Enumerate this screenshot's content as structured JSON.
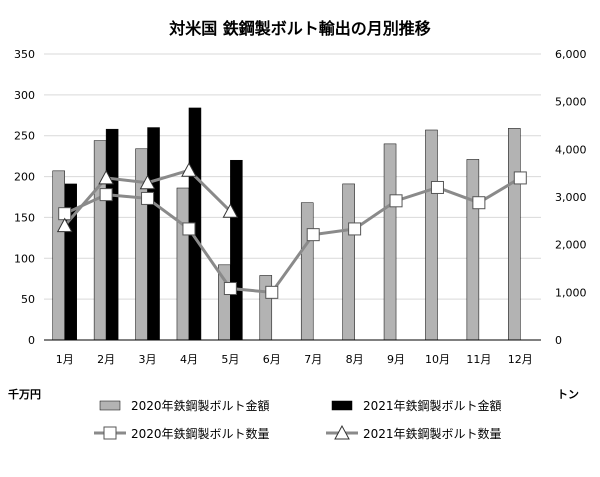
{
  "chart_data": {
    "type": "bar",
    "title": "対米国 鉄鋼製ボルト輸出の月別推移",
    "y_left_unit": "千万円",
    "y_right_unit": "トン",
    "y_left_ticks": [
      "0",
      "50",
      "100",
      "150",
      "200",
      "250",
      "300",
      "350"
    ],
    "y_right_ticks": [
      "0",
      "1,000",
      "2,000",
      "3,000",
      "4,000",
      "5,000",
      "6,000"
    ],
    "ylim_left": [
      0,
      350
    ],
    "ylim_right": [
      0,
      6000
    ],
    "categories": [
      "1月",
      "2月",
      "3月",
      "4月",
      "5月",
      "6月",
      "7月",
      "8月",
      "9月",
      "10月",
      "11月",
      "12月"
    ],
    "series": [
      {
        "name": "2020年鉄鋼製ボルト金額",
        "kind": "bar",
        "axis": "left",
        "color": "#b3b3b3",
        "values": [
          207,
          244,
          234,
          186,
          92,
          79,
          168,
          191,
          240,
          257,
          221,
          259
        ]
      },
      {
        "name": "2021年鉄鋼製ボルト金額",
        "kind": "bar",
        "axis": "left",
        "color": "#000000",
        "values": [
          191,
          258,
          260,
          284,
          220,
          null,
          null,
          null,
          null,
          null,
          null,
          null
        ]
      },
      {
        "name": "2020年鉄鋼製ボルト数量",
        "kind": "line",
        "axis": "right",
        "marker": "square",
        "color": "#8a8a8a",
        "values": [
          2650,
          3050,
          2970,
          2330,
          1080,
          1000,
          2210,
          2330,
          2920,
          3200,
          2880,
          3400
        ]
      },
      {
        "name": "2021年鉄鋼製ボルト数量",
        "kind": "line",
        "axis": "right",
        "marker": "triangle",
        "color": "#8a8a8a",
        "values": [
          2400,
          3400,
          3300,
          3560,
          2700,
          null,
          null,
          null,
          null,
          null,
          null,
          null
        ]
      }
    ],
    "grid": true,
    "legend_position": "bottom"
  }
}
